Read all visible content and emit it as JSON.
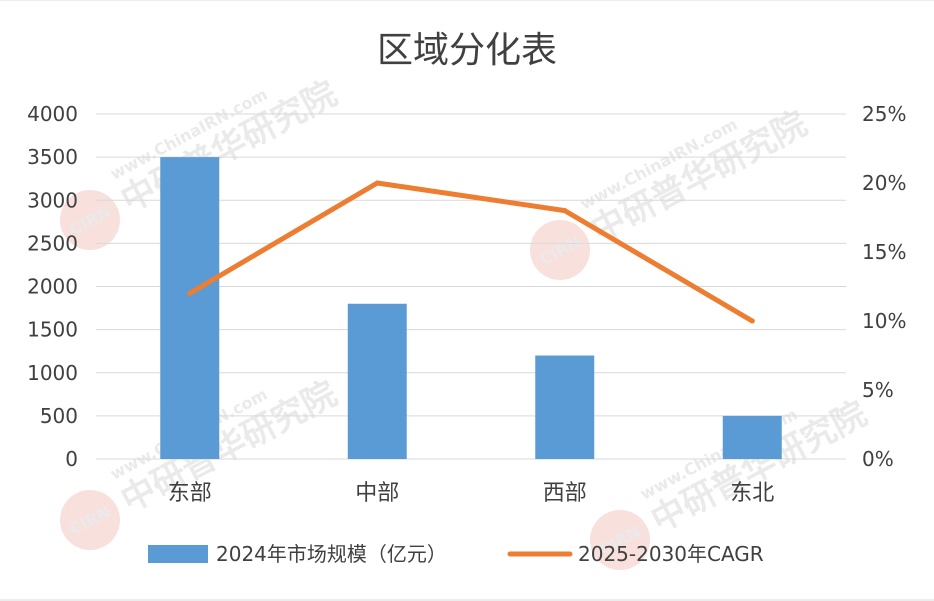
{
  "chart_data": {
    "type": "bar",
    "title": "区域分化表",
    "categories": [
      "东部",
      "中部",
      "西部",
      "东北"
    ],
    "series": [
      {
        "name": "2024年市场规模（亿元）",
        "kind": "bar",
        "axis": "left",
        "color": "#5b9bd5",
        "values": [
          3500,
          1800,
          1200,
          500
        ]
      },
      {
        "name": "2025-2030年CAGR",
        "kind": "line",
        "axis": "right",
        "color": "#ed7d31",
        "values": [
          12,
          20,
          18,
          10
        ]
      }
    ],
    "y_left": {
      "min": 0,
      "max": 4000,
      "ticks": [
        "0",
        "500",
        "1000",
        "1500",
        "2000",
        "2500",
        "3000",
        "3500",
        "4000"
      ]
    },
    "y_right": {
      "min": 0,
      "max": 25,
      "ticks": [
        "0%",
        "5%",
        "10%",
        "15%",
        "20%",
        "25%"
      ]
    },
    "grid": true,
    "legend_position": "bottom"
  },
  "watermark": {
    "text": "中研普华研究院",
    "url_text": "www.ChinaIRN.com",
    "logo_text": "CIRN"
  }
}
